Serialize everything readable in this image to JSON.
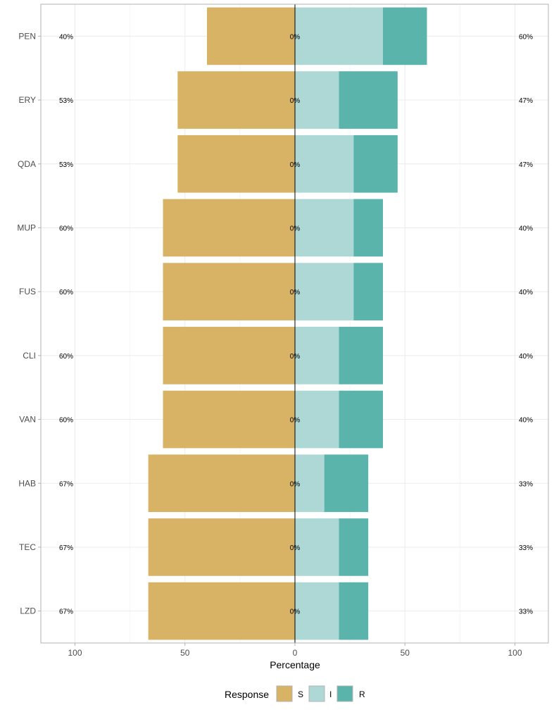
{
  "chart_data": {
    "type": "bar",
    "orientation": "horizontal-diverging",
    "xlabel": "Percentage",
    "xlim": [
      -115,
      115
    ],
    "xticks": [
      -100,
      -50,
      0,
      50,
      100
    ],
    "xtick_labels": [
      "100",
      "50",
      "0",
      "50",
      "100"
    ],
    "grid": true,
    "categories": [
      "PEN",
      "ERY",
      "QDA",
      "MUP",
      "FUS",
      "CLI",
      "VAN",
      "HAB",
      "TEC",
      "LZD"
    ],
    "series": [
      {
        "name": "S",
        "color": "#D8B365",
        "side": "left",
        "values": [
          40,
          53.33,
          53.33,
          60,
          60,
          60,
          60,
          66.67,
          66.67,
          66.67
        ]
      },
      {
        "name": "I",
        "color": "#ADD8D5",
        "side": "right",
        "values": [
          40,
          20,
          26.67,
          26.67,
          26.67,
          20,
          20,
          13.33,
          20,
          20
        ]
      },
      {
        "name": "R",
        "color": "#5AB4AC",
        "side": "right",
        "values": [
          20,
          26.67,
          20,
          13.33,
          13.33,
          20,
          20,
          20,
          13.33,
          13.33
        ]
      }
    ],
    "left_labels": [
      "40%",
      "53%",
      "53%",
      "60%",
      "60%",
      "60%",
      "60%",
      "67%",
      "67%",
      "67%"
    ],
    "center_labels": [
      "0%",
      "0%",
      "0%",
      "0%",
      "0%",
      "0%",
      "0%",
      "0%",
      "0%",
      "0%"
    ],
    "right_labels": [
      "60%",
      "47%",
      "47%",
      "40%",
      "40%",
      "40%",
      "40%",
      "33%",
      "33%",
      "33%"
    ],
    "legend": {
      "title": "Response",
      "position": "bottom",
      "entries": [
        "S",
        "I",
        "R"
      ]
    }
  }
}
